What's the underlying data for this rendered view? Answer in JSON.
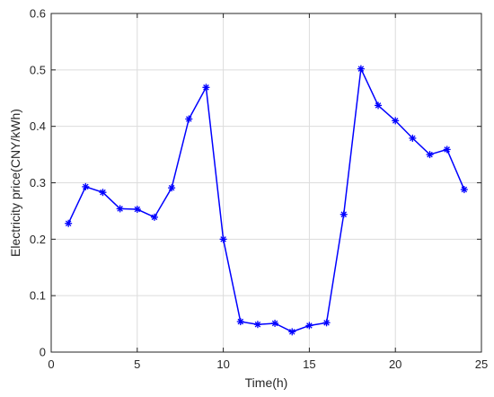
{
  "chart_data": {
    "type": "line",
    "xlabel": "Time(h)",
    "ylabel": "Electricity price(CNY/kWh)",
    "xlim": [
      0,
      25
    ],
    "ylim": [
      0,
      0.6
    ],
    "xticks": [
      0,
      5,
      10,
      15,
      20,
      25
    ],
    "yticks": [
      0,
      0.1,
      0.2,
      0.3,
      0.4,
      0.5,
      0.6
    ],
    "xtick_labels": [
      "0",
      "5",
      "10",
      "15",
      "20",
      "25"
    ],
    "ytick_labels": [
      "0",
      "0.1",
      "0.2",
      "0.3",
      "0.4",
      "0.5",
      "0.6"
    ],
    "grid": true,
    "marker": "asterisk",
    "color": "#0000ff",
    "series": [
      {
        "x": [
          1,
          2,
          3,
          4,
          5,
          6,
          7,
          8,
          9,
          10,
          11,
          12,
          13,
          14,
          15,
          16,
          17,
          18,
          19,
          20,
          21,
          22,
          23,
          24
        ],
        "values": [
          0.228,
          0.293,
          0.283,
          0.254,
          0.253,
          0.239,
          0.291,
          0.413,
          0.469,
          0.2,
          0.054,
          0.049,
          0.051,
          0.036,
          0.047,
          0.052,
          0.244,
          0.502,
          0.437,
          0.41,
          0.379,
          0.35,
          0.359,
          0.288
        ]
      }
    ]
  }
}
